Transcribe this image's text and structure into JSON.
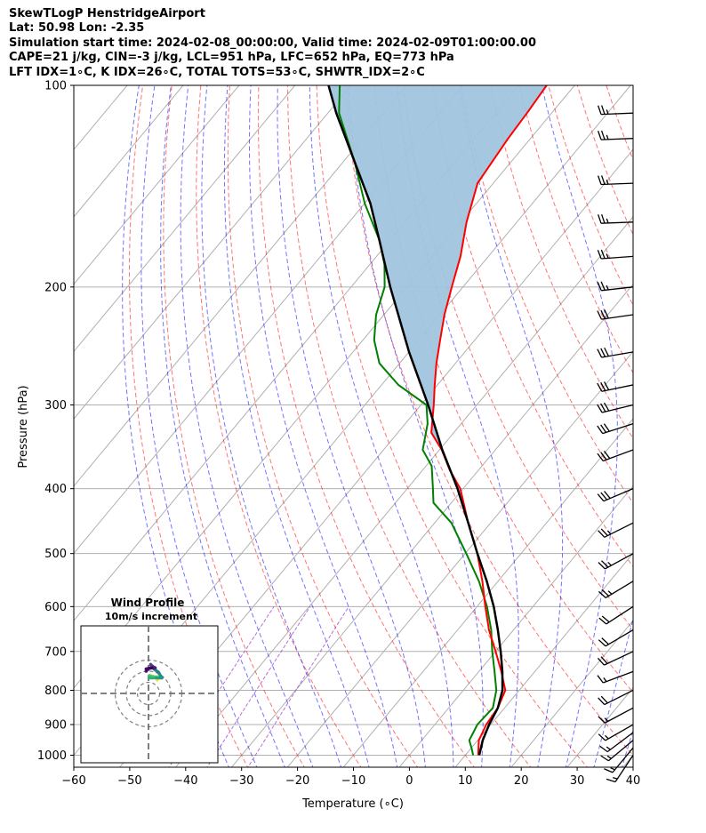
{
  "header": {
    "line1": "SkewTLogP HenstridgeAirport",
    "line2": "Lat: 50.98   Lon: -2.35",
    "line3": "Simulation start time: 2024-02-08_00:00:00, Valid time: 2024-02-09T01:00:00.00",
    "line4": "CAPE=21 j/kg, CIN=-3 j/kg, LCL=951 hPa, LFC=652 hPa, EQ=773 hPa",
    "line5": "LFT IDX=1∘C, K IDX=26∘C, TOTAL TOTS=53∘C, SHWTR_IDX=2∘C"
  },
  "colors": {
    "temperature": "#ff0000",
    "dewpoint": "#008000",
    "parcel": "#000000",
    "cape_fill": "#a0c4de",
    "dry_adiabat": "#ff0000",
    "moist_adiabat": "#0000ff",
    "mixing_ratio": "#9933cc",
    "isotherm": "#b0b0b0"
  },
  "chart_data": {
    "type": "skewt",
    "xlabel": "Temperature (∘C)",
    "ylabel": "Pressure (hPa)",
    "xlim": [
      -60,
      40
    ],
    "ylim": [
      1050,
      100
    ],
    "y_scale": "log",
    "x_ticks": [
      "−60",
      "−50",
      "−40",
      "−30",
      "−20",
      "−10",
      "0",
      "10",
      "20",
      "30",
      "40"
    ],
    "y_ticks": [
      "100",
      "200",
      "300",
      "400",
      "500",
      "600",
      "700",
      "800",
      "900",
      "1000"
    ],
    "grid": true,
    "temperature_profile": [
      [
        1000,
        12.3
      ],
      [
        950,
        10.2
      ],
      [
        900,
        9.2
      ],
      [
        850,
        8.8
      ],
      [
        800,
        7.5
      ],
      [
        750,
        4.0
      ],
      [
        700,
        0.0
      ],
      [
        650,
        -4.4
      ],
      [
        600,
        -8.5
      ],
      [
        550,
        -12.8
      ],
      [
        500,
        -17.8
      ],
      [
        450,
        -24.0
      ],
      [
        400,
        -30.5
      ],
      [
        375,
        -35.2
      ],
      [
        350,
        -39.6
      ],
      [
        330,
        -44.0
      ],
      [
        300,
        -47.7
      ],
      [
        280,
        -50.5
      ],
      [
        260,
        -53.4
      ],
      [
        240,
        -56.2
      ],
      [
        220,
        -59.2
      ],
      [
        200,
        -62.0
      ],
      [
        180,
        -65.0
      ],
      [
        160,
        -69.0
      ],
      [
        140,
        -72.8
      ],
      [
        120,
        -74.0
      ],
      [
        110,
        -74.4
      ],
      [
        100,
        -75.0
      ]
    ],
    "dewpoint_profile": [
      [
        1000,
        11.4
      ],
      [
        980,
        10.3
      ],
      [
        950,
        8.5
      ],
      [
        900,
        7.6
      ],
      [
        850,
        7.9
      ],
      [
        800,
        5.9
      ],
      [
        750,
        2.8
      ],
      [
        700,
        -0.6
      ],
      [
        650,
        -4.0
      ],
      [
        600,
        -8.2
      ],
      [
        550,
        -13.4
      ],
      [
        500,
        -19.8
      ],
      [
        450,
        -27.0
      ],
      [
        420,
        -33.2
      ],
      [
        400,
        -35.4
      ],
      [
        370,
        -39.0
      ],
      [
        350,
        -43.0
      ],
      [
        320,
        -46.0
      ],
      [
        300,
        -49.0
      ],
      [
        280,
        -57.0
      ],
      [
        260,
        -63.6
      ],
      [
        240,
        -68.0
      ],
      [
        220,
        -71.4
      ],
      [
        200,
        -74.0
      ],
      [
        185,
        -77.4
      ],
      [
        170,
        -82.0
      ],
      [
        150,
        -90.0
      ],
      [
        130,
        -98.0
      ],
      [
        110,
        -108.0
      ],
      [
        100,
        -112.0
      ]
    ],
    "parcel_profile": [
      [
        1000,
        12.5
      ],
      [
        950,
        10.9
      ],
      [
        900,
        9.7
      ],
      [
        850,
        8.8
      ],
      [
        800,
        7.0
      ],
      [
        750,
        4.2
      ],
      [
        700,
        0.9
      ],
      [
        650,
        -2.8
      ],
      [
        600,
        -7.0
      ],
      [
        550,
        -12.0
      ],
      [
        500,
        -17.8
      ],
      [
        450,
        -24.0
      ],
      [
        400,
        -31.0
      ],
      [
        350,
        -39.5
      ],
      [
        300,
        -48.7
      ],
      [
        250,
        -60.0
      ],
      [
        200,
        -73.0
      ],
      [
        170,
        -82.0
      ],
      [
        150,
        -89.0
      ],
      [
        130,
        -98.0
      ],
      [
        110,
        -108.5
      ],
      [
        100,
        -114.0
      ]
    ],
    "wind_barbs": [
      {
        "p": 1000,
        "u": 8,
        "v": 12
      },
      {
        "p": 975,
        "u": 10,
        "v": 12
      },
      {
        "p": 950,
        "u": 12,
        "v": 10
      },
      {
        "p": 925,
        "u": 12,
        "v": 9
      },
      {
        "p": 900,
        "u": 14,
        "v": 8
      },
      {
        "p": 850,
        "u": 15,
        "v": 8
      },
      {
        "p": 800,
        "u": 16,
        "v": 8
      },
      {
        "p": 750,
        "u": 16,
        "v": 6
      },
      {
        "p": 700,
        "u": 17,
        "v": 8
      },
      {
        "p": 650,
        "u": 17,
        "v": 10
      },
      {
        "p": 600,
        "u": 17,
        "v": 11
      },
      {
        "p": 550,
        "u": 20,
        "v": 12
      },
      {
        "p": 500,
        "u": 22,
        "v": 12
      },
      {
        "p": 450,
        "u": 24,
        "v": 12
      },
      {
        "p": 400,
        "u": 26,
        "v": 11
      },
      {
        "p": 350,
        "u": 27,
        "v": 10
      },
      {
        "p": 320,
        "u": 28,
        "v": 9
      },
      {
        "p": 300,
        "u": 29,
        "v": 7
      },
      {
        "p": 280,
        "u": 29,
        "v": 6
      },
      {
        "p": 250,
        "u": 29,
        "v": 5
      },
      {
        "p": 220,
        "u": 28,
        "v": 4
      },
      {
        "p": 200,
        "u": 27,
        "v": 3
      },
      {
        "p": 180,
        "u": 27,
        "v": 2
      },
      {
        "p": 160,
        "u": 26,
        "v": 1
      },
      {
        "p": 140,
        "u": 26,
        "v": 1
      },
      {
        "p": 120,
        "u": 25,
        "v": 1
      },
      {
        "p": 110,
        "u": 25,
        "v": 1
      }
    ]
  },
  "inset": {
    "title_line1": "Wind Profile",
    "title_line2": "10m/s increment",
    "rings": [
      10,
      20,
      30
    ],
    "hodograph": [
      {
        "u": 8,
        "v": 12,
        "color": "#fde725"
      },
      {
        "u": 9,
        "v": 14,
        "color": "#d0e11c"
      },
      {
        "u": 8,
        "v": 15,
        "color": "#a0da39"
      },
      {
        "u": 5,
        "v": 15,
        "color": "#6ece58"
      },
      {
        "u": 1,
        "v": 16,
        "color": "#4ac16d"
      },
      {
        "u": 1,
        "v": 14,
        "color": "#2db27d"
      },
      {
        "u": 7,
        "v": 14,
        "color": "#1fa187"
      },
      {
        "u": 12,
        "v": 14,
        "color": "#21918c"
      },
      {
        "u": 9,
        "v": 19,
        "color": "#277f8e"
      },
      {
        "u": 5,
        "v": 22,
        "color": "#2e6e8e"
      },
      {
        "u": 3,
        "v": 24,
        "color": "#365c8d"
      },
      {
        "u": 2,
        "v": 26,
        "color": "#3e4a89"
      },
      {
        "u": 4,
        "v": 24,
        "color": "#46327e"
      },
      {
        "u": 6,
        "v": 23,
        "color": "#482173"
      },
      {
        "u": 3,
        "v": 23,
        "color": "#440154"
      },
      {
        "u": -2,
        "v": 22,
        "color": "#3b0f70"
      },
      {
        "u": -2,
        "v": 20,
        "color": "#440154"
      }
    ]
  }
}
